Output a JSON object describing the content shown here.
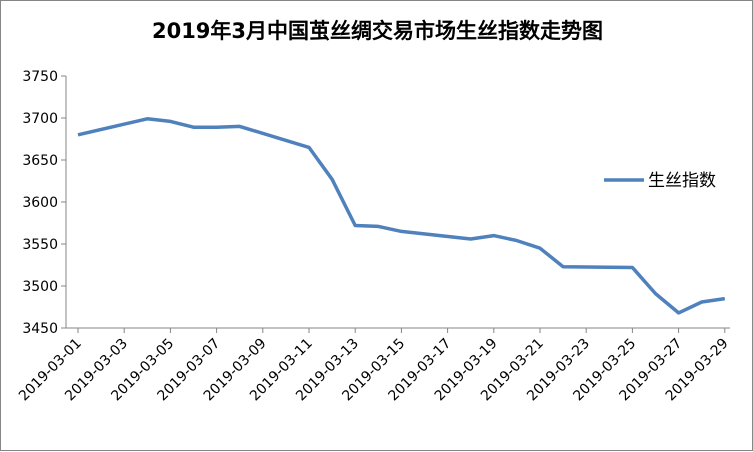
{
  "chart_data": {
    "type": "line",
    "title": "2019年3月中国茧丝绸交易市场生丝指数走势图",
    "ylim": [
      3450,
      3750
    ],
    "yticks": [
      3450,
      3500,
      3550,
      3600,
      3650,
      3700,
      3750
    ],
    "xticks": [
      "2019-03-01",
      "2019-03-03",
      "2019-03-05",
      "2019-03-07",
      "2019-03-09",
      "2019-03-11",
      "2019-03-13",
      "2019-03-15",
      "2019-03-17",
      "2019-03-19",
      "2019-03-21",
      "2019-03-23",
      "2019-03-25",
      "2019-03-27",
      "2019-03-29"
    ],
    "grid": false,
    "legend_position": "right",
    "color": "#4f81bd",
    "series": [
      {
        "name": "生丝指数",
        "x": [
          "2019-03-01",
          "2019-03-04",
          "2019-03-05",
          "2019-03-06",
          "2019-03-07",
          "2019-03-08",
          "2019-03-11",
          "2019-03-12",
          "2019-03-13",
          "2019-03-14",
          "2019-03-15",
          "2019-03-18",
          "2019-03-19",
          "2019-03-20",
          "2019-03-21",
          "2019-03-22",
          "2019-03-25",
          "2019-03-26",
          "2019-03-27",
          "2019-03-28",
          "2019-03-29"
        ],
        "values": [
          3680,
          3699,
          3696,
          3689,
          3689,
          3690,
          3665,
          3627,
          3572,
          3571,
          3565,
          3556,
          3560,
          3554,
          3545,
          3523,
          3522,
          3491,
          3468,
          3481,
          3485
        ]
      }
    ]
  }
}
